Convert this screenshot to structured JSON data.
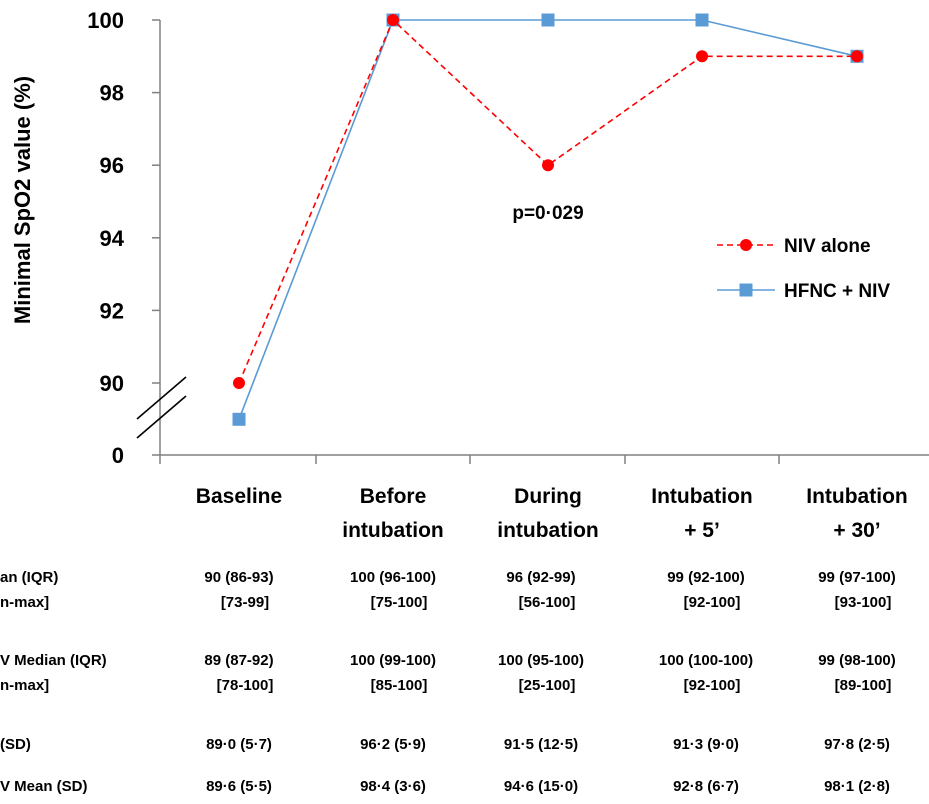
{
  "chart_data": {
    "type": "line",
    "ylabel": "Minimal SpO2 value (%)",
    "categories": [
      [
        "Baseline"
      ],
      [
        "Before",
        "intubation"
      ],
      [
        "During",
        "intubation"
      ],
      [
        "Intubation",
        "+ 5’"
      ],
      [
        "Intubation",
        "+ 30’"
      ]
    ],
    "y_ticks": [
      "100",
      "98",
      "96",
      "94",
      "92",
      "90",
      "0"
    ],
    "y_axis_break": true,
    "ylim": [
      88,
      100
    ],
    "series": [
      {
        "name": "NIV alone",
        "values": [
          90,
          100,
          96,
          99,
          99
        ],
        "color": "#ff0000",
        "line_style": "dashed",
        "marker": "circle"
      },
      {
        "name": "HFNC + NIV",
        "values": [
          89,
          100,
          100,
          100,
          99
        ],
        "color": "#5b9bd5",
        "line_style": "solid",
        "marker": "square"
      }
    ],
    "annotations": [
      {
        "text": "p=0·029",
        "category_index": 2
      }
    ],
    "legend_position": "right"
  },
  "table": {
    "rows": [
      {
        "label": [
          "an (IQR)",
          "n-max]"
        ],
        "cells": [
          [
            "90 (86-93)",
            "[73-99]"
          ],
          [
            "100 (96-100)",
            "[75-100]"
          ],
          [
            "96 (92-99)",
            "[56-100]"
          ],
          [
            "99 (92-100)",
            "[92-100]"
          ],
          [
            "99 (97-100)",
            "[93-100]"
          ]
        ]
      },
      {
        "label": [
          "V Median (IQR)",
          "n-max]"
        ],
        "cells": [
          [
            "89 (87-92)",
            "[78-100]"
          ],
          [
            "100 (99-100)",
            "[85-100]"
          ],
          [
            "100 (95-100)",
            "[25-100]"
          ],
          [
            "100 (100-100)",
            "[92-100]"
          ],
          [
            "99 (98-100)",
            "[89-100]"
          ]
        ]
      },
      {
        "label": [
          "(SD)"
        ],
        "cells": [
          [
            "89·0 (5·7)"
          ],
          [
            "96·2 (5·9)"
          ],
          [
            "91·5 (12·5)"
          ],
          [
            "91·3 (9·0)"
          ],
          [
            "97·8 (2·5)"
          ]
        ]
      },
      {
        "label": [
          "V Mean (SD)"
        ],
        "cells": [
          [
            "89·6 (5·5)"
          ],
          [
            "98·4 (3·6)"
          ],
          [
            "94·6 (15·0)"
          ],
          [
            "92·8 (6·7)"
          ],
          [
            "98·1 (2·8)"
          ]
        ]
      }
    ]
  }
}
